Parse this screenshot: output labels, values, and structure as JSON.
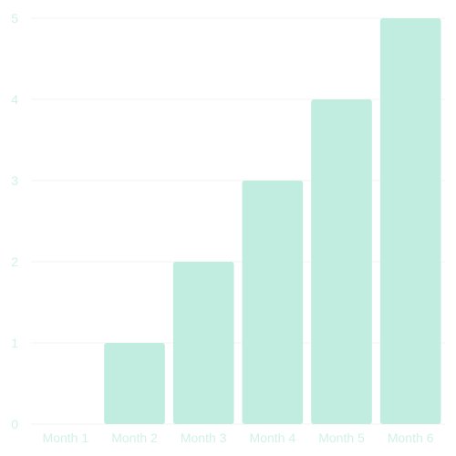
{
  "chart_data": {
    "type": "bar",
    "categories": [
      "Month 1",
      "Month 2",
      "Month 3",
      "Month 4",
      "Month 5",
      "Month 6"
    ],
    "values": [
      0,
      1,
      2,
      3,
      4,
      5
    ],
    "title": "",
    "xlabel": "",
    "ylabel": "",
    "ylim": [
      0,
      5
    ],
    "yticks": [
      "0",
      "1",
      "2",
      "3",
      "4",
      "5"
    ],
    "grid": true,
    "legend": "none"
  },
  "colors": {
    "bar": "#c0ede0",
    "tick_text": "#d2f2e8",
    "grid": "#f3f3f3"
  }
}
